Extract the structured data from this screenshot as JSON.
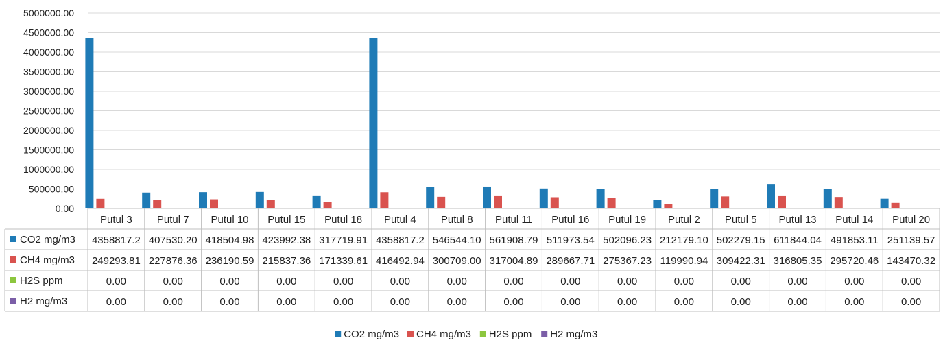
{
  "colors": {
    "CO2": "#1f7bb6",
    "CH4": "#d9534f",
    "H2S": "#8cc63e",
    "H2": "#7b5ea7",
    "grid": "#d9d9d9",
    "axis": "#bfbfbf"
  },
  "chart_data": {
    "type": "bar",
    "title": "",
    "xlabel": "",
    "ylabel": "",
    "ylim": [
      0,
      5000000
    ],
    "ytick_step": 500000,
    "ytick_labels": [
      "0.00",
      "500000.00",
      "1000000.00",
      "1500000.00",
      "2000000.00",
      "2500000.00",
      "3000000.00",
      "3500000.00",
      "4000000.00",
      "4500000.00",
      "5000000.00"
    ],
    "grid": true,
    "legend_position": "bottom",
    "categories": [
      "Putul 3",
      "Putul 7",
      "Putul 10",
      "Putul 15",
      "Putul 18",
      "Putul 4",
      "Putul 8",
      "Putul 11",
      "Putul 16",
      "Putul 19",
      "Putul 2",
      "Putul 5",
      "Putul 13",
      "Putul 14",
      "Putul 20"
    ],
    "series": [
      {
        "key": "CO2",
        "name": "CO2 mg/m3",
        "values": [
          4358817.2,
          407530.2,
          418504.98,
          423992.38,
          317719.91,
          4358817.2,
          546544.1,
          561908.79,
          511973.54,
          502096.23,
          212179.1,
          502279.15,
          611844.04,
          491853.11,
          251139.57
        ],
        "labels": [
          "4358817.2",
          "407530.20",
          "418504.98",
          "423992.38",
          "317719.91",
          "4358817.2",
          "546544.10",
          "561908.79",
          "511973.54",
          "502096.23",
          "212179.10",
          "502279.15",
          "611844.04",
          "491853.11",
          "251139.57"
        ]
      },
      {
        "key": "CH4",
        "name": "CH4 mg/m3",
        "values": [
          249293.81,
          227876.36,
          236190.59,
          215837.36,
          171339.61,
          416492.94,
          300709.0,
          317004.89,
          289667.71,
          275367.23,
          119990.94,
          309422.31,
          316805.35,
          295720.46,
          143470.32
        ],
        "labels": [
          "249293.81",
          "227876.36",
          "236190.59",
          "215837.36",
          "171339.61",
          "416492.94",
          "300709.00",
          "317004.89",
          "289667.71",
          "275367.23",
          "119990.94",
          "309422.31",
          "316805.35",
          "295720.46",
          "143470.32"
        ]
      },
      {
        "key": "H2S",
        "name": "H2S ppm",
        "values": [
          0,
          0,
          0,
          0,
          0,
          0,
          0,
          0,
          0,
          0,
          0,
          0,
          0,
          0,
          0
        ],
        "labels": [
          "0.00",
          "0.00",
          "0.00",
          "0.00",
          "0.00",
          "0.00",
          "0.00",
          "0.00",
          "0.00",
          "0.00",
          "0.00",
          "0.00",
          "0.00",
          "0.00",
          "0.00"
        ]
      },
      {
        "key": "H2",
        "name": "H2 mg/m3",
        "values": [
          0,
          0,
          0,
          0,
          0,
          0,
          0,
          0,
          0,
          0,
          0,
          0,
          0,
          0,
          0
        ],
        "labels": [
          "0.00",
          "0.00",
          "0.00",
          "0.00",
          "0.00",
          "0.00",
          "0.00",
          "0.00",
          "0.00",
          "0.00",
          "0.00",
          "0.00",
          "0.00",
          "0.00",
          "0.00"
        ]
      }
    ]
  }
}
